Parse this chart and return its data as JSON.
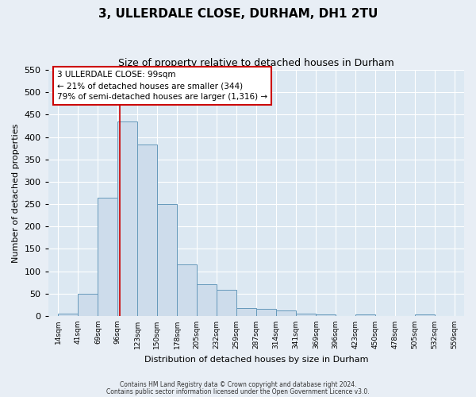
{
  "title": "3, ULLERDALE CLOSE, DURHAM, DH1 2TU",
  "subtitle": "Size of property relative to detached houses in Durham",
  "xlabel": "Distribution of detached houses by size in Durham",
  "ylabel": "Number of detached properties",
  "bin_edges": [
    14,
    41,
    69,
    96,
    123,
    150,
    178,
    205,
    232,
    259,
    287,
    314,
    341,
    369,
    396,
    423,
    450,
    478,
    505,
    532,
    559
  ],
  "bar_heights": [
    5,
    50,
    265,
    435,
    383,
    250,
    115,
    70,
    58,
    18,
    15,
    12,
    5,
    3,
    0,
    3,
    0,
    0,
    3,
    0
  ],
  "bar_color": "#cddceb",
  "bar_edgecolor": "#6699bb",
  "ylim": [
    0,
    550
  ],
  "yticks": [
    0,
    50,
    100,
    150,
    200,
    250,
    300,
    350,
    400,
    450,
    500,
    550
  ],
  "property_line_x": 99,
  "property_line_color": "#cc0000",
  "annotation_title": "3 ULLERDALE CLOSE: 99sqm",
  "annotation_line1": "← 21% of detached houses are smaller (344)",
  "annotation_line2": "79% of semi-detached houses are larger (1,316) →",
  "annotation_box_edgecolor": "#cc0000",
  "annotation_box_facecolor": "#ffffff",
  "footnote1": "Contains HM Land Registry data © Crown copyright and database right 2024.",
  "footnote2": "Contains public sector information licensed under the Open Government Licence v3.0.",
  "fig_facecolor": "#e8eef5",
  "plot_facecolor": "#dce8f2",
  "grid_color": "#ffffff",
  "title_fontsize": 11,
  "subtitle_fontsize": 9,
  "ylabel_fontsize": 8,
  "xlabel_fontsize": 8,
  "ytick_fontsize": 8,
  "xtick_fontsize": 6.5
}
